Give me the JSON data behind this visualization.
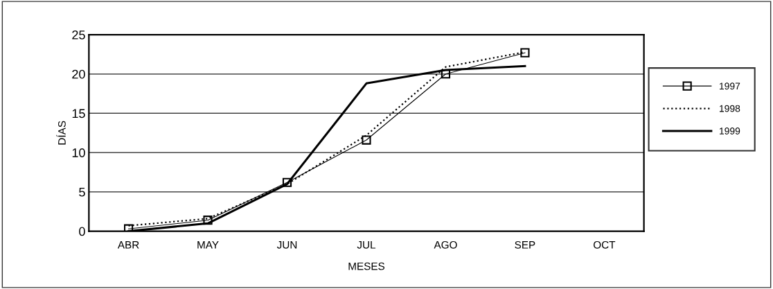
{
  "chart_data": {
    "type": "line",
    "xlabel": "MESES",
    "ylabel": "DÍAS",
    "categories": [
      "ABR",
      "MAY",
      "JUN",
      "JUL",
      "AGO",
      "SEP",
      "OCT"
    ],
    "series": [
      {
        "name": "1997",
        "color": "#000000",
        "values": [
          0.3,
          1.4,
          6.2,
          11.6,
          20.0,
          22.7,
          null
        ],
        "marker": "square",
        "line_style": "solid"
      },
      {
        "name": "1998",
        "color": "#000000",
        "values": [
          0.7,
          1.6,
          6.0,
          12.2,
          20.9,
          22.8,
          null
        ],
        "marker": "none",
        "line_style": "dotted"
      },
      {
        "name": "1999",
        "color": "#000000",
        "values": [
          0.0,
          1.0,
          6.0,
          18.8,
          20.5,
          21.0,
          null
        ],
        "marker": "none",
        "line_style": "solid"
      }
    ],
    "ylim": [
      0,
      25
    ],
    "yticks": [
      0,
      5,
      10,
      15,
      20,
      25
    ],
    "grid": "y",
    "legend": "right"
  }
}
